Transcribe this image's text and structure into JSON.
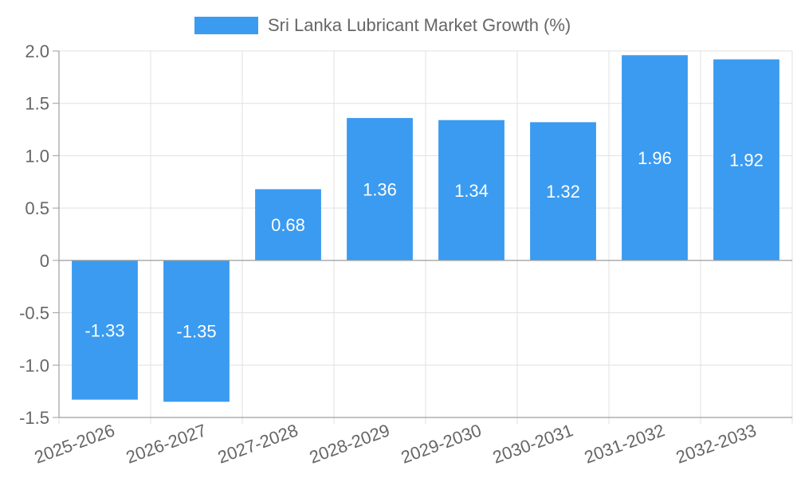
{
  "chart_data": {
    "type": "bar",
    "title": "",
    "xlabel": "",
    "ylabel": "",
    "categories": [
      "2025-2026",
      "2026-2027",
      "2027-2028",
      "2028-2029",
      "2029-2030",
      "2030-2031",
      "2031-2032",
      "2032-2033"
    ],
    "series": [
      {
        "name": "Sri Lanka Lubricant Market Growth (%)",
        "values": [
          -1.33,
          -1.35,
          0.68,
          1.36,
          1.34,
          1.32,
          1.96,
          1.92
        ],
        "color": "#3a9bf0"
      }
    ],
    "data_labels": [
      "-1.33",
      "-1.35",
      "0.68",
      "1.36",
      "1.34",
      "1.32",
      "1.96",
      "1.92"
    ],
    "y_ticks": [
      2.0,
      1.5,
      1.0,
      0.5,
      0,
      -0.5,
      -1.0,
      -1.5
    ],
    "y_tick_labels": [
      "2.0",
      "1.5",
      "1.0",
      "0.5",
      "0",
      "-0.5",
      "-1.0",
      "-1.5"
    ],
    "ylim": [
      -1.5,
      2.0
    ],
    "grid": true,
    "legend_position": "top-center",
    "colors": {
      "bar": "#3a9bf0",
      "grid": "#e0e0e0",
      "axis": "#9e9e9e",
      "tick_text": "#666666",
      "label_text": "#ffffff"
    }
  }
}
